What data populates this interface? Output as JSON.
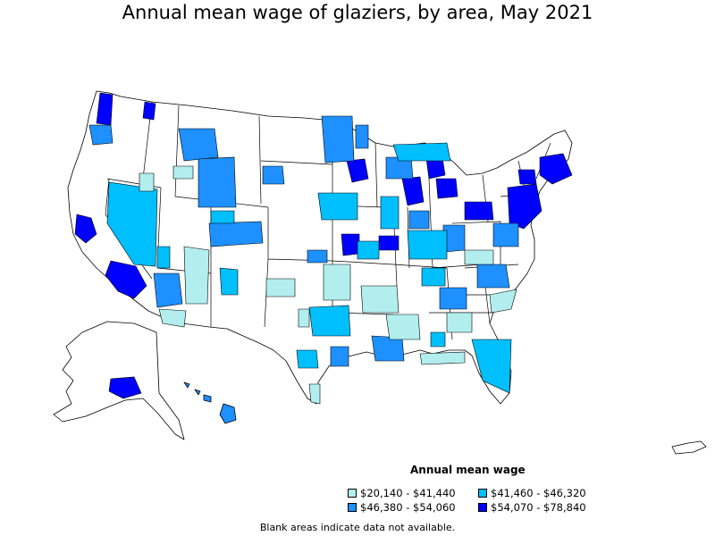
{
  "title": "Annual mean wage of glaziers, by area, May 2021",
  "legend": {
    "title": "Annual mean wage",
    "items": [
      {
        "label": "$20,140 - $41,440",
        "color": "#b3eeee"
      },
      {
        "label": "$41,460 - $46,320",
        "color": "#00bfff"
      },
      {
        "label": "$46,380 - $54,060",
        "color": "#1e90ff"
      },
      {
        "label": "$54,070 - $78,840",
        "color": "#0000ff"
      }
    ]
  },
  "note": "Blank areas indicate data not available."
}
